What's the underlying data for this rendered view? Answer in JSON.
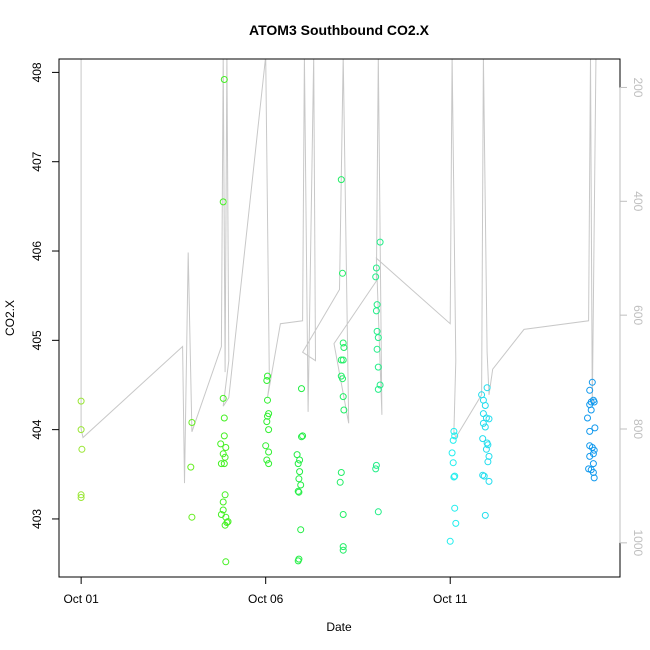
{
  "chart_data": {
    "type": "scatter",
    "title": "ATOM3 Southbound CO2.X",
    "xlabel": "Date",
    "ylabel": "CO2.X",
    "x_unit": "days since Oct 01",
    "x_ticks": [
      {
        "value": 0,
        "label": "Oct 01"
      },
      {
        "value": 5,
        "label": "Oct 06"
      },
      {
        "value": 10,
        "label": "Oct 11"
      }
    ],
    "xlim": [
      -0.6,
      14.6
    ],
    "ylim": [
      402.35,
      408.15
    ],
    "y_ticks": [
      403,
      404,
      405,
      406,
      407,
      408
    ],
    "y2lim": [
      1060,
      150
    ],
    "y2_ticks": [
      200,
      400,
      600,
      800,
      1000
    ],
    "y2_color": "#bfbfbf",
    "profile_color": "#c8c8c8",
    "grid": false,
    "series": [
      {
        "color": "#99e633",
        "points": [
          [
            0.0,
            404.32
          ],
          [
            0.0,
            404.0
          ],
          [
            0.02,
            403.78
          ],
          [
            0.0,
            403.27
          ],
          [
            0.0,
            403.24
          ]
        ]
      },
      {
        "color": "#66ee22",
        "points": [
          [
            3.0,
            404.08
          ],
          [
            2.97,
            403.58
          ],
          [
            3.0,
            403.02
          ]
        ]
      },
      {
        "color": "#44f022",
        "points": [
          [
            3.88,
            407.92
          ],
          [
            3.85,
            406.55
          ],
          [
            3.85,
            404.35
          ],
          [
            3.88,
            404.13
          ],
          [
            3.88,
            403.93
          ],
          [
            3.78,
            403.84
          ],
          [
            3.92,
            403.8
          ],
          [
            3.85,
            403.73
          ],
          [
            3.9,
            403.69
          ],
          [
            3.8,
            403.62
          ],
          [
            3.88,
            403.62
          ],
          [
            3.9,
            403.27
          ],
          [
            3.85,
            403.19
          ],
          [
            3.85,
            403.1
          ],
          [
            3.8,
            403.05
          ],
          [
            3.92,
            403.02
          ],
          [
            3.98,
            402.97
          ],
          [
            3.9,
            402.93
          ],
          [
            3.95,
            402.96
          ],
          [
            3.92,
            402.52
          ]
        ]
      },
      {
        "color": "#33f033",
        "points": [
          [
            5.05,
            404.6
          ],
          [
            5.03,
            404.55
          ],
          [
            5.05,
            404.33
          ],
          [
            5.08,
            404.18
          ],
          [
            5.05,
            404.15
          ],
          [
            5.03,
            404.09
          ],
          [
            5.08,
            404.0
          ],
          [
            5.0,
            403.82
          ],
          [
            5.08,
            403.75
          ],
          [
            5.03,
            403.66
          ],
          [
            5.08,
            403.62
          ]
        ]
      },
      {
        "color": "#22ee44",
        "points": [
          [
            5.97,
            404.46
          ],
          [
            6.0,
            403.93
          ],
          [
            5.97,
            403.92
          ],
          [
            5.85,
            403.72
          ],
          [
            5.92,
            403.66
          ],
          [
            5.88,
            403.62
          ],
          [
            5.92,
            403.53
          ],
          [
            5.9,
            403.45
          ],
          [
            5.95,
            403.38
          ],
          [
            5.9,
            403.3
          ],
          [
            5.88,
            403.31
          ],
          [
            5.95,
            402.88
          ],
          [
            5.9,
            402.55
          ],
          [
            5.88,
            402.53
          ]
        ]
      },
      {
        "color": "#22ee66",
        "points": [
          [
            7.05,
            406.8
          ],
          [
            7.08,
            405.75
          ],
          [
            7.1,
            404.97
          ],
          [
            7.12,
            404.92
          ],
          [
            7.05,
            404.78
          ],
          [
            7.1,
            404.78
          ],
          [
            7.05,
            404.6
          ],
          [
            7.08,
            404.57
          ],
          [
            7.1,
            404.37
          ],
          [
            7.12,
            404.22
          ],
          [
            7.05,
            403.52
          ],
          [
            7.02,
            403.41
          ],
          [
            7.1,
            403.05
          ],
          [
            7.1,
            402.69
          ],
          [
            7.1,
            402.65
          ]
        ]
      },
      {
        "color": "#22ee88",
        "points": [
          [
            8.1,
            406.1
          ],
          [
            8.0,
            405.81
          ],
          [
            7.98,
            405.71
          ],
          [
            8.02,
            405.4
          ],
          [
            8.0,
            405.33
          ],
          [
            8.02,
            405.1
          ],
          [
            8.05,
            405.03
          ],
          [
            8.02,
            404.9
          ],
          [
            8.05,
            404.7
          ],
          [
            8.1,
            404.5
          ],
          [
            8.05,
            404.45
          ],
          [
            8.0,
            403.6
          ],
          [
            7.98,
            403.56
          ],
          [
            8.05,
            403.08
          ]
        ]
      },
      {
        "color": "#22eeee",
        "points": [
          [
            10.1,
            403.98
          ],
          [
            10.12,
            403.93
          ],
          [
            10.08,
            403.88
          ],
          [
            10.05,
            403.74
          ],
          [
            10.08,
            403.63
          ],
          [
            10.1,
            403.47
          ],
          [
            10.12,
            403.48
          ],
          [
            10.12,
            403.12
          ],
          [
            10.15,
            402.95
          ],
          [
            10.0,
            402.75
          ]
        ]
      },
      {
        "color": "#22ddee",
        "points": [
          [
            11.0,
            404.47
          ],
          [
            10.85,
            404.39
          ],
          [
            10.9,
            404.33
          ],
          [
            10.95,
            404.27
          ],
          [
            10.9,
            404.18
          ],
          [
            10.98,
            404.13
          ],
          [
            11.05,
            404.12
          ],
          [
            10.9,
            404.07
          ],
          [
            10.95,
            404.03
          ],
          [
            10.88,
            403.9
          ],
          [
            11.0,
            403.85
          ],
          [
            11.02,
            403.83
          ],
          [
            10.98,
            403.78
          ],
          [
            11.05,
            403.7
          ],
          [
            11.02,
            403.64
          ],
          [
            10.88,
            403.49
          ],
          [
            10.92,
            403.48
          ],
          [
            11.05,
            403.42
          ],
          [
            10.95,
            403.04
          ]
        ]
      },
      {
        "color": "#1199ee",
        "points": [
          [
            13.85,
            404.53
          ],
          [
            13.78,
            404.44
          ],
          [
            13.88,
            404.33
          ],
          [
            13.82,
            404.31
          ],
          [
            13.9,
            404.31
          ],
          [
            13.78,
            404.28
          ],
          [
            13.82,
            404.22
          ],
          [
            13.72,
            404.13
          ],
          [
            13.92,
            404.02
          ],
          [
            13.78,
            403.98
          ],
          [
            13.78,
            403.82
          ],
          [
            13.85,
            403.8
          ],
          [
            13.9,
            403.77
          ],
          [
            13.88,
            403.73
          ],
          [
            13.78,
            403.7
          ],
          [
            13.88,
            403.62
          ],
          [
            13.75,
            403.56
          ],
          [
            13.82,
            403.55
          ],
          [
            13.88,
            403.52
          ],
          [
            13.9,
            403.46
          ]
        ]
      }
    ],
    "profile_path": [
      [
        0.0,
        150
      ],
      [
        0.0,
        800
      ],
      [
        0.05,
        815
      ],
      [
        2.75,
        655
      ],
      [
        2.8,
        895
      ],
      [
        2.9,
        490
      ],
      [
        3.0,
        805
      ],
      [
        3.8,
        655
      ],
      [
        3.85,
        145
      ],
      [
        3.9,
        700
      ],
      [
        3.95,
        145
      ],
      [
        4.0,
        680
      ],
      [
        3.85,
        760
      ],
      [
        4.0,
        745
      ],
      [
        5.0,
        145
      ],
      [
        5.1,
        720
      ],
      [
        5.05,
        745
      ],
      [
        5.4,
        615
      ],
      [
        6.0,
        610
      ],
      [
        6.05,
        145
      ],
      [
        6.15,
        770
      ],
      [
        6.3,
        145
      ],
      [
        6.35,
        680
      ],
      [
        6.0,
        665
      ],
      [
        7.0,
        555
      ],
      [
        7.1,
        145
      ],
      [
        7.25,
        790
      ],
      [
        6.85,
        650
      ],
      [
        8.0,
        540
      ],
      [
        8.05,
        145
      ],
      [
        8.15,
        775
      ],
      [
        8.0,
        500
      ],
      [
        10.0,
        615
      ],
      [
        10.05,
        145
      ],
      [
        10.15,
        680
      ],
      [
        10.1,
        805
      ],
      [
        10.15,
        815
      ],
      [
        10.85,
        740
      ],
      [
        10.9,
        145
      ],
      [
        11.0,
        665
      ],
      [
        11.05,
        740
      ],
      [
        11.15,
        695
      ],
      [
        12.0,
        625
      ],
      [
        13.75,
        610
      ],
      [
        13.8,
        145
      ],
      [
        13.85,
        760
      ],
      [
        13.95,
        140
      ]
    ]
  }
}
